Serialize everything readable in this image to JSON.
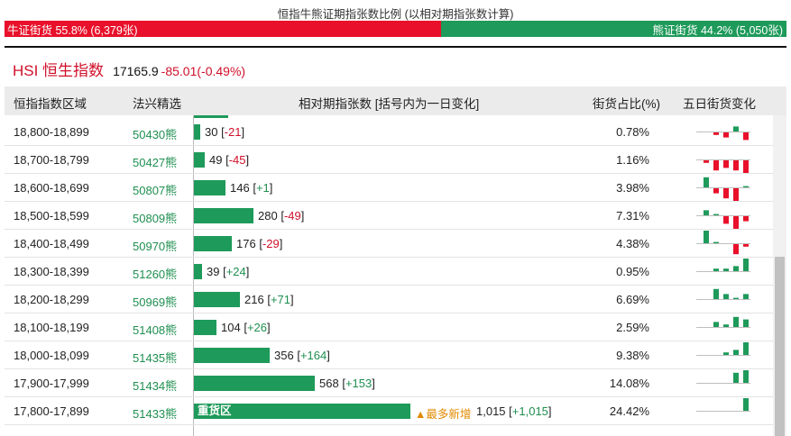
{
  "ratio": {
    "title": "恒指牛熊证期指张数比例 (以相对期指张数计算)",
    "bull_label": "牛证街货 55.8% (6,379张)",
    "bear_label": "熊证街货 44.2% (5,050张)",
    "bull_fraction": 0.558,
    "bull_color": "#e8102a",
    "bear_color": "#1e9a5a"
  },
  "index": {
    "name": "HSI 恒生指数",
    "price": "17165.9",
    "change": "-85.01(-0.49%)"
  },
  "table": {
    "headers": {
      "range": "恒指指数区域",
      "pick": "法兴精选",
      "contracts": "相对期指张数 [括号内为一日变化]",
      "share": "街货占比(%)",
      "five_day": "五日街货变化"
    },
    "rows": [
      {
        "range": "18,800-18,899",
        "code": "50430熊",
        "count": "30",
        "change": "-21",
        "share": "0.78%",
        "value": 30,
        "spark": [
          0,
          -1,
          -2,
          2,
          -3
        ]
      },
      {
        "range": "18,700-18,799",
        "code": "50427熊",
        "count": "49",
        "change": "-45",
        "share": "1.16%",
        "value": 49,
        "spark": [
          -1,
          -4,
          -3,
          -4,
          -5
        ]
      },
      {
        "range": "18,600-18,699",
        "code": "50807熊",
        "count": "146",
        "change": "+1",
        "share": "3.98%",
        "value": 146,
        "spark": [
          4,
          -2,
          -4,
          -5,
          0.5
        ]
      },
      {
        "range": "18,500-18,599",
        "code": "50809熊",
        "count": "280",
        "change": "-49",
        "share": "7.31%",
        "value": 280,
        "spark": [
          2,
          0.5,
          -3,
          -5,
          -2
        ]
      },
      {
        "range": "18,400-18,499",
        "code": "50970熊",
        "count": "176",
        "change": "-29",
        "share": "4.38%",
        "value": 176,
        "spark": [
          5,
          0.5,
          0,
          -4,
          -1
        ]
      },
      {
        "range": "18,300-18,399",
        "code": "51260熊",
        "count": "39",
        "change": "+24",
        "share": "0.95%",
        "value": 39,
        "spark": [
          0,
          1,
          1,
          2,
          5
        ]
      },
      {
        "range": "18,200-18,299",
        "code": "50969熊",
        "count": "216",
        "change": "+71",
        "share": "6.69%",
        "value": 216,
        "spark": [
          0,
          4,
          2,
          0.5,
          2
        ]
      },
      {
        "range": "18,100-18,199",
        "code": "51408熊",
        "count": "104",
        "change": "+26",
        "share": "2.59%",
        "value": 104,
        "spark": [
          0,
          2,
          1,
          4,
          3
        ]
      },
      {
        "range": "18,000-18,099",
        "code": "51435熊",
        "count": "356",
        "change": "+164",
        "share": "9.38%",
        "value": 356,
        "spark": [
          0,
          0,
          1,
          2,
          5
        ]
      },
      {
        "range": "17,900-17,999",
        "code": "51434熊",
        "count": "568",
        "change": "+153",
        "share": "14.08%",
        "value": 568,
        "spark": [
          0,
          0,
          0,
          4,
          5
        ]
      },
      {
        "range": "17,800-17,899",
        "code": "51433熊",
        "count": "1,015",
        "change": "+1,015",
        "share": "24.42%",
        "value": 1015,
        "label": "重货区",
        "tag": "▲最多新增",
        "spark": [
          0,
          0,
          0,
          0,
          5
        ]
      }
    ]
  }
}
